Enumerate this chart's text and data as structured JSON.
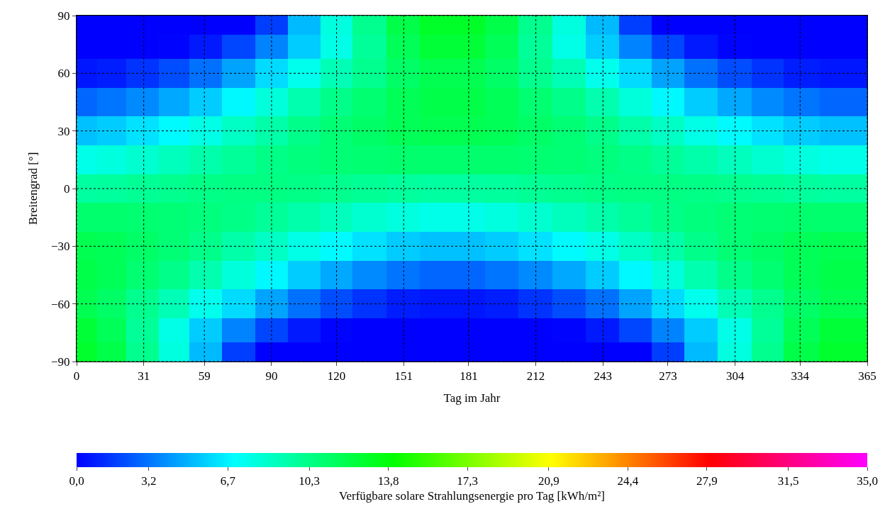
{
  "chart_data": {
    "type": "heatmap",
    "xlabel": "Tag im Jahr",
    "ylabel": "Breitengrad [°]",
    "clabel": "Verfügbare solare Strahlungsenergie pro Tag [kWh/m²]",
    "x": [
      4,
      15,
      31,
      45,
      59,
      75,
      90,
      105,
      120,
      135,
      151,
      166,
      181,
      196,
      212,
      227,
      243,
      258,
      273,
      288,
      304,
      319,
      334,
      352
    ],
    "y": [
      85,
      75,
      60,
      45,
      30,
      15,
      0,
      -15,
      -30,
      -45,
      -60,
      -75,
      -85
    ],
    "xlim": [
      0,
      365
    ],
    "ylim": [
      -90,
      90
    ],
    "xticks": [
      0,
      31,
      59,
      90,
      120,
      151,
      181,
      212,
      243,
      273,
      304,
      334,
      365
    ],
    "yticks": [
      {
        "value": -90,
        "label": "−90"
      },
      {
        "value": -60,
        "label": "−60"
      },
      {
        "value": -30,
        "label": "−30"
      },
      0,
      30,
      60,
      90
    ],
    "clim": [
      0,
      35
    ],
    "cticks": [
      {
        "value": 0,
        "label": "0,0"
      },
      {
        "value": 3.2,
        "label": "3,2"
      },
      {
        "value": 6.7,
        "label": "6,7"
      },
      {
        "value": 10.3,
        "label": "10,3"
      },
      {
        "value": 13.8,
        "label": "13,8"
      },
      {
        "value": 17.3,
        "label": "17,3"
      },
      {
        "value": 20.9,
        "label": "20,9"
      },
      {
        "value": 24.4,
        "label": "24,4"
      },
      {
        "value": 27.9,
        "label": "27,9"
      },
      {
        "value": 31.5,
        "label": "31,5"
      },
      {
        "value": 35,
        "label": "35,0"
      }
    ],
    "grid": true,
    "line_style": "dotted",
    "cells": [
      [
        0,
        0,
        0,
        0,
        0,
        0,
        1.7,
        5.1,
        7.9,
        10.1,
        12.0,
        12.9,
        12.9,
        12.0,
        10.1,
        7.9,
        5.1,
        1.7,
        0,
        0,
        0,
        0,
        0,
        0
      ],
      [
        0,
        0,
        0,
        0.1,
        0.7,
        1.9,
        3.6,
        5.6,
        7.7,
        9.8,
        11.6,
        12.5,
        12.5,
        11.6,
        9.8,
        7.7,
        5.6,
        3.6,
        1.9,
        0.7,
        0.1,
        0,
        0,
        0
      ],
      [
        0.6,
        0.8,
        1.4,
        2.1,
        3.1,
        4.5,
        6.0,
        7.5,
        9.0,
        10.1,
        11.2,
        11.8,
        11.8,
        11.2,
        10.1,
        9.0,
        7.5,
        6.0,
        4.5,
        3.1,
        2.1,
        1.4,
        0.8,
        0.6
      ],
      [
        2.8,
        3.2,
        3.8,
        4.6,
        5.6,
        6.8,
        8.0,
        9.2,
        10.2,
        10.9,
        11.6,
        12.0,
        12.0,
        11.6,
        10.9,
        10.2,
        9.2,
        8.0,
        6.8,
        5.6,
        4.6,
        3.8,
        3.2,
        2.8
      ],
      [
        5.3,
        5.6,
        6.2,
        6.9,
        7.7,
        8.6,
        9.4,
        10.2,
        10.8,
        11.2,
        11.6,
        11.8,
        11.8,
        11.6,
        11.2,
        10.8,
        10.2,
        9.4,
        8.6,
        7.7,
        6.9,
        6.2,
        5.6,
        5.3
      ],
      [
        7.6,
        7.9,
        8.3,
        8.8,
        9.3,
        9.8,
        10.3,
        10.6,
        10.8,
        10.9,
        11.0,
        11.0,
        11.0,
        11.0,
        10.9,
        10.8,
        10.6,
        10.3,
        9.8,
        9.3,
        8.8,
        8.3,
        7.9,
        7.6
      ],
      [
        9.6,
        9.7,
        9.9,
        10.1,
        10.3,
        10.4,
        10.4,
        10.3,
        10.1,
        9.9,
        9.7,
        9.6,
        9.6,
        9.7,
        9.9,
        10.1,
        10.3,
        10.4,
        10.4,
        10.3,
        10.1,
        9.9,
        9.7,
        9.6
      ],
      [
        11.0,
        11.0,
        10.9,
        10.8,
        10.6,
        10.3,
        9.8,
        9.3,
        8.8,
        8.3,
        7.9,
        7.6,
        7.6,
        7.9,
        8.3,
        8.8,
        9.3,
        9.8,
        10.3,
        10.6,
        10.8,
        10.9,
        11.0,
        11.0
      ],
      [
        11.8,
        11.6,
        11.2,
        10.8,
        10.2,
        9.4,
        8.6,
        7.7,
        6.9,
        6.2,
        5.6,
        5.3,
        5.3,
        5.6,
        6.2,
        6.9,
        7.7,
        8.6,
        9.4,
        10.2,
        10.8,
        11.2,
        11.6,
        11.8
      ],
      [
        12.0,
        11.6,
        10.9,
        10.2,
        9.2,
        8.0,
        6.8,
        5.6,
        4.6,
        3.8,
        3.2,
        2.8,
        2.8,
        3.2,
        3.8,
        4.6,
        5.6,
        6.8,
        8.0,
        9.2,
        10.2,
        10.9,
        11.6,
        12.0
      ],
      [
        11.8,
        11.2,
        10.1,
        9.0,
        7.5,
        6.0,
        4.5,
        3.1,
        2.1,
        1.4,
        0.8,
        0.6,
        0.6,
        0.8,
        1.4,
        2.1,
        3.1,
        4.5,
        6.0,
        7.5,
        9.0,
        10.1,
        11.2,
        11.8
      ],
      [
        12.5,
        11.6,
        9.8,
        7.7,
        5.6,
        3.6,
        1.9,
        0.7,
        0.1,
        0,
        0,
        0,
        0,
        0,
        0,
        0.1,
        0.7,
        1.9,
        3.6,
        5.6,
        7.7,
        9.8,
        11.6,
        12.5
      ],
      [
        12.8,
        12.0,
        10.1,
        7.9,
        5.1,
        1.7,
        0,
        0,
        0,
        0,
        0,
        0,
        0,
        0,
        0,
        0,
        0,
        0,
        1.7,
        5.1,
        7.9,
        10.1,
        12.0,
        12.8
      ]
    ]
  }
}
